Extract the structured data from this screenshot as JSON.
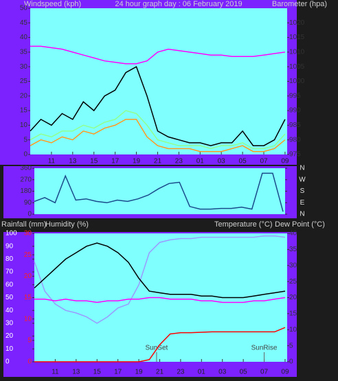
{
  "chart_data": [
    {
      "type": "line",
      "title": "24 hour graph day : 06 February 2019",
      "y_label": "Windspeed (kph)",
      "y2_label": "Barometer (hpa)",
      "x": [
        9,
        10,
        11,
        12,
        13,
        14,
        15,
        16,
        17,
        18,
        19,
        20,
        21,
        22,
        23,
        24,
        25,
        26,
        27,
        28,
        29,
        30,
        31,
        32,
        33
      ],
      "xlim": [
        9,
        33.2
      ],
      "xticks": [
        11,
        13,
        15,
        17,
        19,
        21,
        23,
        {
          "value": 25,
          "label": "01"
        },
        {
          "value": 27,
          "label": "03"
        },
        {
          "value": 29,
          "label": "05"
        },
        {
          "value": 31,
          "label": "07"
        },
        {
          "value": 33,
          "label": "09"
        }
      ],
      "ylim": [
        0,
        50
      ],
      "yticks": [
        0,
        5,
        10,
        15,
        20,
        25,
        30,
        35,
        40,
        45,
        50
      ],
      "y2lim": [
        975,
        1025
      ],
      "y2ticks": [
        975,
        980,
        985,
        990,
        995,
        1000,
        1005,
        1010,
        1015,
        1020
      ],
      "series": [
        {
          "color": "#ff00ff",
          "axis": "y2",
          "values": [
            1012,
            1012,
            1011.5,
            1011,
            1010,
            1009,
            1008,
            1007,
            1006.5,
            1006,
            1006,
            1007,
            1010,
            1011,
            1010.5,
            1010,
            1009.5,
            1009,
            1009,
            1008.5,
            1008.5,
            1008.5,
            1009,
            1009.5,
            1010
          ]
        },
        {
          "color": "#90ff90",
          "values": [
            5,
            7,
            6,
            8,
            8,
            10,
            9,
            11,
            12,
            15,
            14,
            10,
            5,
            4,
            3,
            3,
            3,
            2,
            3,
            3,
            4,
            2,
            2,
            3,
            7
          ]
        },
        {
          "color": "#000000",
          "values": [
            8,
            12,
            10,
            14,
            12,
            18,
            15,
            20,
            22,
            28,
            30,
            20,
            8,
            6,
            5,
            4,
            4,
            3,
            4,
            4,
            8,
            3,
            3,
            5,
            12
          ]
        },
        {
          "color": "#ff9a20",
          "values": [
            3,
            5,
            4,
            6,
            5,
            8,
            7,
            9,
            10,
            12,
            12,
            6,
            3,
            2,
            2,
            2,
            1,
            1,
            1,
            2,
            3,
            1,
            1,
            2,
            5
          ]
        }
      ]
    },
    {
      "type": "line",
      "x": [
        9,
        10,
        11,
        12,
        13,
        14,
        15,
        16,
        17,
        18,
        19,
        20,
        21,
        22,
        23,
        24,
        25,
        26,
        27,
        28,
        29,
        30,
        31,
        32,
        33
      ],
      "xlim": [
        9,
        33.2
      ],
      "ylim": [
        0,
        360
      ],
      "yticks": [
        0,
        90,
        180,
        270,
        360
      ],
      "y2ticks": [
        {
          "value": 360,
          "label": "N"
        },
        {
          "value": 270,
          "label": "W"
        },
        {
          "value": 180,
          "label": "S"
        },
        {
          "value": 90,
          "label": "E"
        },
        {
          "value": 0,
          "label": "N"
        }
      ],
      "series": [
        {
          "color": "#1a4a8a",
          "values": [
            100,
            130,
            90,
            300,
            110,
            120,
            100,
            90,
            110,
            100,
            120,
            150,
            200,
            240,
            250,
            60,
            40,
            40,
            45,
            45,
            55,
            40,
            320,
            320,
            20
          ]
        }
      ]
    },
    {
      "type": "line",
      "y_labels": [
        "Rainfall (mm)",
        "Humidity (%)"
      ],
      "y2_labels": [
        "Temperature (°C)",
        "Dew Point (°C)"
      ],
      "x": [
        9,
        10,
        11,
        12,
        13,
        14,
        15,
        16,
        17,
        18,
        19,
        20,
        21,
        22,
        23,
        24,
        25,
        26,
        27,
        28,
        29,
        30,
        31,
        32,
        33
      ],
      "xlim": [
        9,
        33.2
      ],
      "xticks": [
        11,
        13,
        15,
        17,
        19,
        21,
        23,
        {
          "value": 25,
          "label": "01"
        },
        {
          "value": 27,
          "label": "03"
        },
        {
          "value": 29,
          "label": "05"
        },
        {
          "value": 31,
          "label": "07"
        },
        {
          "value": 33,
          "label": "09"
        }
      ],
      "ylim": [
        0,
        100
      ],
      "yticks": [
        0,
        10,
        20,
        30,
        40,
        50,
        60,
        70,
        80,
        90,
        100
      ],
      "y2lim": [
        0,
        40
      ],
      "y2ticks": [
        0,
        5,
        10,
        15,
        20,
        25,
        30,
        35,
        40
      ],
      "y3lim": [
        0,
        30
      ],
      "y3ticks": [
        0,
        5,
        10,
        15,
        20,
        25,
        30
      ],
      "series": [
        {
          "color": "#9a9aff",
          "values": [
            78,
            55,
            45,
            40,
            38,
            35,
            30,
            35,
            42,
            45,
            60,
            85,
            93,
            95,
            96,
            96,
            97,
            97,
            97,
            97,
            97,
            97,
            98,
            98,
            97
          ]
        },
        {
          "color": "#ff00ff",
          "axis": "y2",
          "values": [
            19.5,
            19.5,
            19,
            19.5,
            19,
            19,
            18.5,
            19,
            19,
            19.5,
            19.5,
            20,
            20,
            19.5,
            19.5,
            19.5,
            19,
            19,
            18.5,
            18.5,
            18.5,
            19,
            19,
            19.5,
            20
          ]
        },
        {
          "color": "#000000",
          "axis": "y2",
          "values": [
            23,
            26,
            29,
            32,
            34,
            36,
            37,
            36,
            34,
            31,
            26,
            22,
            21.5,
            21,
            21,
            21,
            20.5,
            20.5,
            20,
            20,
            20,
            20.5,
            21,
            21.5,
            22
          ]
        },
        {
          "color": "#ff0000",
          "axis": "y3",
          "values": [
            0,
            0,
            0,
            0,
            0,
            0,
            0,
            0,
            0,
            0,
            0,
            0.5,
            4,
            6.5,
            6.8,
            6.8,
            6.9,
            7,
            7,
            7,
            7,
            7,
            7,
            7,
            8
          ]
        }
      ],
      "annotations": [
        {
          "x": 20.7,
          "text": "SunSet"
        },
        {
          "x": 31,
          "text": "SunRise"
        }
      ]
    }
  ]
}
